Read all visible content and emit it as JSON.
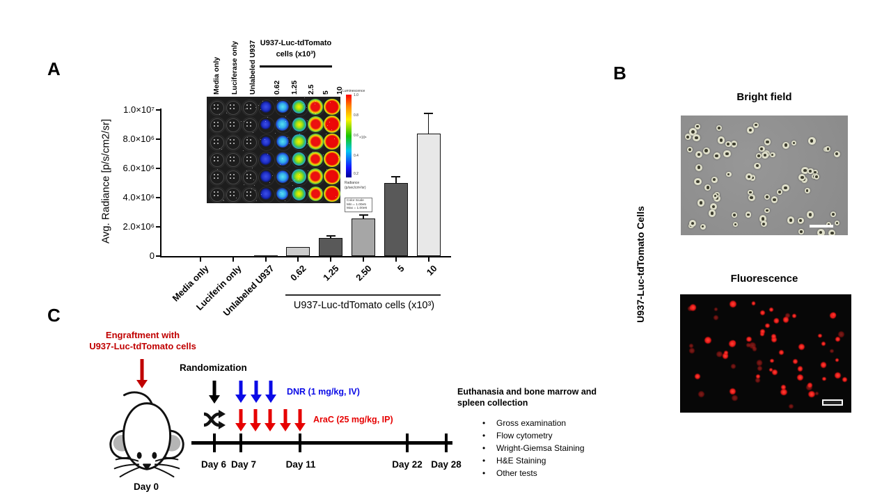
{
  "chart_data": {
    "type": "bar",
    "title": "",
    "ylabel": "Avg. Radiance [p/s/cm2/sr]",
    "xlabel_group": "U937-Luc-tdTomato cells (x10³)",
    "categories": [
      "Media only",
      "Luciferin only",
      "Unlabeled U937",
      "0.62",
      "1.25",
      "2.50",
      "5",
      "10"
    ],
    "values": [
      0,
      20000,
      60000,
      620000,
      1250000,
      2550000,
      5000000,
      8400000
    ],
    "errors": [
      0,
      0,
      0,
      0,
      150000,
      285000,
      450000,
      1350000
    ],
    "bar_colors": [
      "#cccccc",
      "#cccccc",
      "#cccccc",
      "#cccccc",
      "#595959",
      "#a6a6a6",
      "#595959",
      "#e8e8e8"
    ],
    "ylim": [
      0,
      10000000
    ],
    "ytick_values": [
      0,
      2000000,
      4000000,
      6000000,
      8000000,
      10000000
    ],
    "ytick_labels": [
      "0",
      "2.0×10⁶",
      "4.0×10⁶",
      "6.0×10⁶",
      "8.0×10⁶",
      "1.0×10⁷"
    ],
    "grid": false,
    "legend": "none"
  },
  "panel_a": {
    "label": "A",
    "inset": {
      "control_labels": [
        "Media only",
        "Luciferase only",
        "Unlabeled U937"
      ],
      "group_header_line1": "U937-Luc-tdTomato",
      "group_header_line2": "cells (x10³)",
      "dose_labels": [
        "0.62",
        "1.25",
        "2.5",
        "5",
        "10"
      ],
      "well_columns": [
        "empty",
        "empty",
        "empty",
        "low",
        "mlow",
        "med",
        "high",
        "max"
      ],
      "rows": 6,
      "colorbar": {
        "title": "Luminescence",
        "ticks": [
          "1.0",
          "0.8",
          "0.6",
          "0.4",
          "0.2"
        ],
        "multiplier": "×10⁶",
        "unit_line1": "Radiance",
        "unit_line2": "(p/sec/cm²/sr)",
        "scale_line1": "Color Scale",
        "scale_line2": "Min = 1.00e5",
        "scale_line3": "Max = 1.00e6"
      }
    }
  },
  "panel_b": {
    "label": "B",
    "row_label": "U937-Luc-tdTomato  Cells",
    "top_title": "Bright field",
    "bottom_title": "Fluorescence",
    "bright_field_cell_count": 74,
    "fluorescence_cell_count": 66
  },
  "panel_c": {
    "label": "C",
    "engraftment_line1": "Engraftment with",
    "engraftment_line2": "U937-Luc-tdTomato cells",
    "randomization_label": "Randomization",
    "dnr_label": "DNR (1 mg/kg, IV)",
    "arac_label": "AraC  (25 mg/kg, IP)",
    "dnr_dose_count": 3,
    "arac_dose_count": 5,
    "day0_label": "Day 0",
    "day_labels": [
      "Day 6",
      "Day 7",
      "Day 11",
      "Day 22",
      "Day 28"
    ],
    "euthanasia_line1": "Euthanasia and bone marrow and",
    "euthanasia_line2": "spleen collection",
    "tests": [
      "Gross examination",
      "Flow cytometry",
      "Wright-Giemsa Staining",
      "H&E Staining",
      "Other tests"
    ],
    "colors": {
      "engraftment_red": "#c00000",
      "dnr_blue": "#0a0ae6",
      "arac_red": "#e60000",
      "black": "#000000"
    }
  }
}
